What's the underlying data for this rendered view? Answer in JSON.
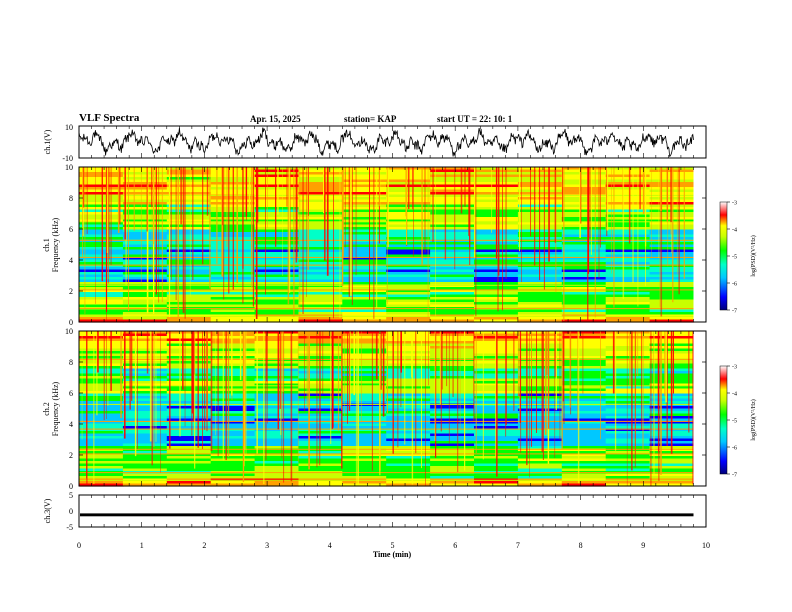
{
  "header": {
    "title": "VLF Spectra",
    "date": "Apr. 15, 2025",
    "station": "station= KAP",
    "start_ut": "start  UT =   22: 10: 1"
  },
  "chart_data": [
    {
      "type": "line",
      "panel": "ch1-waveform",
      "ylabel": "ch.1(V)",
      "ylim": [
        -10,
        10
      ],
      "yticks": [
        "10",
        "-10"
      ],
      "xlim": [
        0,
        10
      ],
      "series": [
        {
          "values_note": "",
          "color": "#000000"
        }
      ]
    },
    {
      "type": "heatmap",
      "panel": "ch1-spectrogram",
      "ylabel": "ch.1\nFrequency (kHz)",
      "ylabel_top": "ch.1",
      "ylabel_bottom": "Frequency (kHz)",
      "ylim": [
        0,
        10
      ],
      "yticks": [
        "0",
        "2",
        "4",
        "6",
        "8",
        "10"
      ],
      "xlim": [
        0,
        9.8
      ],
      "colorbar": {
        "label": "log(PSD)(V²/Hz)",
        "range": [
          -7,
          -3
        ],
        "ticks": [
          "-3",
          "-4",
          "-5",
          "-6",
          "-7"
        ]
      }
    },
    {
      "type": "heatmap",
      "panel": "ch2-spectrogram",
      "ylabel_top": "ch.2",
      "ylabel_bottom": "Frequency (kHz)",
      "ylim": [
        0,
        10
      ],
      "yticks": [
        "0",
        "2",
        "4",
        "6",
        "8",
        "10"
      ],
      "xlim": [
        0,
        9.8
      ],
      "colorbar": {
        "label": "log(PSD)(V²/Hz)",
        "range": [
          -7,
          -3
        ],
        "ticks": [
          "-3",
          "-4",
          "-5",
          "-6",
          "-7"
        ]
      }
    },
    {
      "type": "line",
      "panel": "ch3-waveform",
      "ylabel": "ch.3(V)",
      "ylim": [
        -5,
        5
      ],
      "yticks": [
        "5",
        "0",
        "-5"
      ],
      "xlim": [
        0,
        10
      ],
      "xlabel": "Time  (min)",
      "xticks": [
        "0",
        "1",
        "2",
        "3",
        "4",
        "5",
        "6",
        "7",
        "8",
        "9",
        "10"
      ],
      "series": [
        {
          "level": -1.2,
          "band_width_v": 0.9,
          "color": "#000000"
        }
      ]
    }
  ],
  "colormap": [
    "#00007a",
    "#0000ff",
    "#00c8ff",
    "#00ffc8",
    "#00ff00",
    "#c8ff00",
    "#ffff00",
    "#ffa000",
    "#ff0000",
    "#a00000"
  ]
}
